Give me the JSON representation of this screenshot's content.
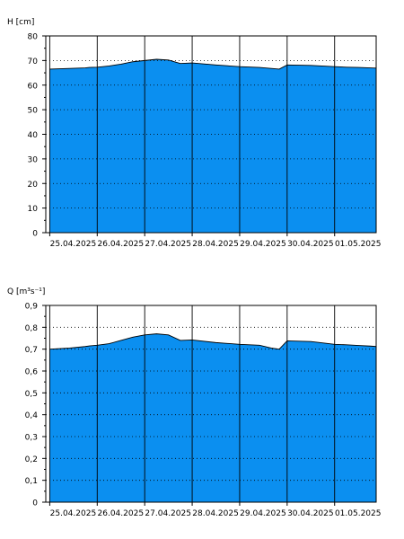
{
  "chart_data": [
    {
      "type": "area",
      "ylabel": "H [cm]",
      "ylim": [
        0,
        80
      ],
      "yticks": [
        "0",
        "10",
        "20",
        "30",
        "40",
        "50",
        "60",
        "70",
        "80"
      ],
      "xlim": [
        "2025-04-24T22:00",
        "2025-05-01T21:00"
      ],
      "xticks": [
        {
          "x": "2025-04-25T00:00",
          "label": "25.04.2025"
        },
        {
          "x": "2025-04-26T00:00",
          "label": "26.04.2025"
        },
        {
          "x": "2025-04-27T00:00",
          "label": "27.04.2025"
        },
        {
          "x": "2025-04-28T00:00",
          "label": "28.04.2025"
        },
        {
          "x": "2025-04-29T00:00",
          "label": "29.04.2025"
        },
        {
          "x": "2025-04-30T00:00",
          "label": "30.04.2025"
        },
        {
          "x": "2025-05-01T00:00",
          "label": "01.05.2025"
        }
      ],
      "grid": true,
      "fill_color": "#0b8ff0",
      "series": [
        {
          "x": [
            "2025-04-25T00:00",
            "2025-04-25T10:00",
            "2025-04-25T18:00",
            "2025-04-25T20:00",
            "2025-04-26T00:00",
            "2025-04-26T06:00",
            "2025-04-26T12:00",
            "2025-04-26T18:00",
            "2025-04-27T00:00",
            "2025-04-27T06:00",
            "2025-04-27T12:00",
            "2025-04-27T18:00",
            "2025-04-28T00:00",
            "2025-04-28T12:00",
            "2025-04-29T00:00",
            "2025-04-29T10:00",
            "2025-04-29T16:00",
            "2025-04-29T20:00",
            "2025-04-30T00:00",
            "2025-04-30T12:00",
            "2025-05-01T00:00",
            "2025-05-01T06:00",
            "2025-05-01T12:00",
            "2025-05-01T18:00",
            "2025-05-01T21:00"
          ],
          "y": [
            66.5,
            66.8,
            67.0,
            67.2,
            67.3,
            67.8,
            68.5,
            69.5,
            70.0,
            70.5,
            70.2,
            68.8,
            69.0,
            68.2,
            67.5,
            67.2,
            66.8,
            66.5,
            68.2,
            68.0,
            67.5,
            67.3,
            67.2,
            67.0,
            66.9
          ]
        }
      ]
    },
    {
      "type": "area",
      "ylabel": "Q [m³s⁻¹]",
      "ylim": [
        0,
        0.9
      ],
      "yticks": [
        "0",
        "0,1",
        "0,2",
        "0,3",
        "0,4",
        "0,5",
        "0,6",
        "0,7",
        "0,8",
        "0,9"
      ],
      "xlim": [
        "2025-04-24T22:00",
        "2025-05-01T21:00"
      ],
      "xticks": [
        {
          "x": "2025-04-25T00:00",
          "label": "25.04.2025"
        },
        {
          "x": "2025-04-26T00:00",
          "label": "26.04.2025"
        },
        {
          "x": "2025-04-27T00:00",
          "label": "27.04.2025"
        },
        {
          "x": "2025-04-28T00:00",
          "label": "28.04.2025"
        },
        {
          "x": "2025-04-29T00:00",
          "label": "29.04.2025"
        },
        {
          "x": "2025-04-30T00:00",
          "label": "30.04.2025"
        },
        {
          "x": "2025-05-01T00:00",
          "label": "01.05.2025"
        }
      ],
      "grid": true,
      "fill_color": "#0b8ff0",
      "series": [
        {
          "x": [
            "2025-04-25T00:00",
            "2025-04-25T10:00",
            "2025-04-25T18:00",
            "2025-04-25T20:00",
            "2025-04-26T00:00",
            "2025-04-26T06:00",
            "2025-04-26T12:00",
            "2025-04-26T18:00",
            "2025-04-27T00:00",
            "2025-04-27T06:00",
            "2025-04-27T12:00",
            "2025-04-27T18:00",
            "2025-04-28T00:00",
            "2025-04-28T12:00",
            "2025-04-29T00:00",
            "2025-04-29T10:00",
            "2025-04-29T16:00",
            "2025-04-29T20:00",
            "2025-04-30T00:00",
            "2025-04-30T12:00",
            "2025-05-01T00:00",
            "2025-05-01T06:00",
            "2025-05-01T12:00",
            "2025-05-01T18:00",
            "2025-05-01T21:00"
          ],
          "y": [
            0.7,
            0.705,
            0.712,
            0.715,
            0.718,
            0.725,
            0.74,
            0.755,
            0.765,
            0.77,
            0.765,
            0.74,
            0.742,
            0.73,
            0.722,
            0.718,
            0.705,
            0.7,
            0.738,
            0.735,
            0.722,
            0.72,
            0.717,
            0.714,
            0.712
          ]
        }
      ]
    }
  ]
}
